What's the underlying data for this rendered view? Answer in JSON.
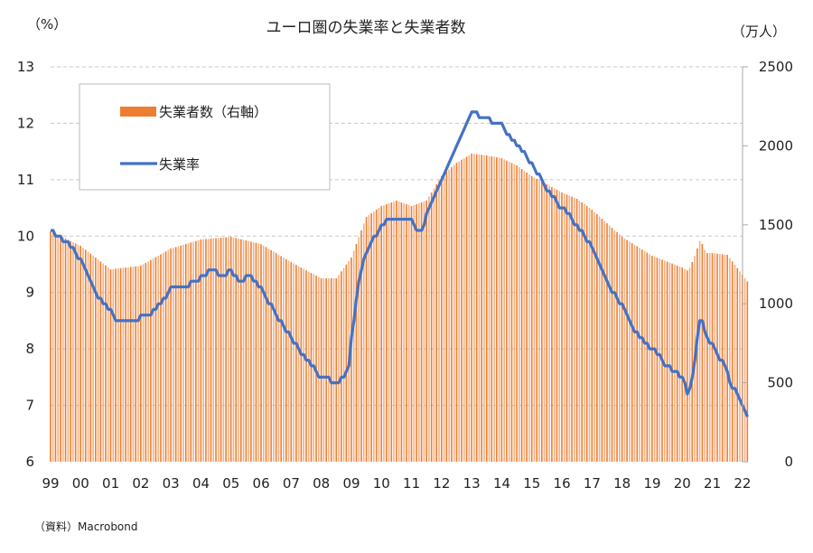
{
  "chart_data": {
    "type": "bar+line",
    "title": "ユーロ圏の失業率と失業者数",
    "left_unit": "（%）",
    "right_unit": "（万人）",
    "source": "（資料）Macrobond",
    "left_axis": {
      "ylim": [
        6,
        13
      ],
      "ticks": [
        "6",
        "7",
        "8",
        "9",
        "10",
        "11",
        "12",
        "13"
      ]
    },
    "right_axis": {
      "ylim": [
        0,
        2500
      ],
      "ticks": [
        "0",
        "500",
        "1000",
        "1500",
        "2000",
        "2500"
      ]
    },
    "x_ticks": [
      "99",
      "00",
      "01",
      "02",
      "03",
      "04",
      "05",
      "06",
      "07",
      "08",
      "09",
      "10",
      "11",
      "12",
      "13",
      "14",
      "15",
      "16",
      "17",
      "18",
      "19",
      "20",
      "21",
      "22"
    ],
    "x_range": [
      1999.0,
      2022.2
    ],
    "grid": true,
    "legend": {
      "position": "top-left",
      "entries": [
        "失業者数（右軸）",
        "失業率"
      ]
    },
    "colors": {
      "bars": "#ED7D31",
      "line": "#4472C4"
    },
    "series": [
      {
        "name": "失業者数（右軸）",
        "type": "bar",
        "axis": "right",
        "frequency": "monthly",
        "points": [
          [
            1999.0,
            1459
          ],
          [
            2000.0,
            1367
          ],
          [
            2001.0,
            1218
          ],
          [
            2002.0,
            1241
          ],
          [
            2003.0,
            1350
          ],
          [
            2004.0,
            1407
          ],
          [
            2005.0,
            1424
          ],
          [
            2006.0,
            1378
          ],
          [
            2007.0,
            1264
          ],
          [
            2008.0,
            1161
          ],
          [
            2008.5,
            1161
          ],
          [
            2009.0,
            1293
          ],
          [
            2009.5,
            1550
          ],
          [
            2010.0,
            1619
          ],
          [
            2010.5,
            1653
          ],
          [
            2011.0,
            1619
          ],
          [
            2011.5,
            1653
          ],
          [
            2012.0,
            1808
          ],
          [
            2012.5,
            1893
          ],
          [
            2013.0,
            1951
          ],
          [
            2013.5,
            1939
          ],
          [
            2014.0,
            1922
          ],
          [
            2014.5,
            1876
          ],
          [
            2015.0,
            1808
          ],
          [
            2016.0,
            1705
          ],
          [
            2016.5,
            1665
          ],
          [
            2017.0,
            1596
          ],
          [
            2018.0,
            1424
          ],
          [
            2019.0,
            1304
          ],
          [
            2020.0,
            1230
          ],
          [
            2020.2,
            1207
          ],
          [
            2020.4,
            1293
          ],
          [
            2020.6,
            1407
          ],
          [
            2020.8,
            1321
          ],
          [
            2021.0,
            1321
          ],
          [
            2021.5,
            1310
          ],
          [
            2022.2,
            1133
          ]
        ]
      },
      {
        "name": "失業率",
        "type": "line",
        "axis": "left",
        "frequency": "monthly",
        "points": [
          [
            1999.0,
            10.08
          ],
          [
            1999.5,
            9.9
          ],
          [
            2000.0,
            9.6
          ],
          [
            2000.5,
            9.0
          ],
          [
            2001.0,
            8.65
          ],
          [
            2001.2,
            8.5
          ],
          [
            2001.8,
            8.5
          ],
          [
            2002.0,
            8.55
          ],
          [
            2002.5,
            8.7
          ],
          [
            2003.0,
            9.05
          ],
          [
            2003.5,
            9.1
          ],
          [
            2004.0,
            9.25
          ],
          [
            2004.3,
            9.4
          ],
          [
            2004.7,
            9.3
          ],
          [
            2005.0,
            9.4
          ],
          [
            2005.3,
            9.2
          ],
          [
            2005.6,
            9.3
          ],
          [
            2006.0,
            9.05
          ],
          [
            2006.5,
            8.6
          ],
          [
            2007.0,
            8.2
          ],
          [
            2007.5,
            7.8
          ],
          [
            2008.0,
            7.5
          ],
          [
            2008.5,
            7.4
          ],
          [
            2008.9,
            7.6
          ],
          [
            2009.0,
            8.2
          ],
          [
            2009.3,
            9.4
          ],
          [
            2009.6,
            9.8
          ],
          [
            2010.0,
            10.2
          ],
          [
            2010.4,
            10.35
          ],
          [
            2011.0,
            10.25
          ],
          [
            2011.3,
            10.05
          ],
          [
            2011.6,
            10.5
          ],
          [
            2012.0,
            11.0
          ],
          [
            2012.5,
            11.6
          ],
          [
            2013.0,
            12.2
          ],
          [
            2013.5,
            12.1
          ],
          [
            2014.0,
            11.95
          ],
          [
            2014.5,
            11.6
          ],
          [
            2015.0,
            11.3
          ],
          [
            2015.5,
            10.8
          ],
          [
            2016.0,
            10.5
          ],
          [
            2016.5,
            10.2
          ],
          [
            2017.0,
            9.8
          ],
          [
            2017.5,
            9.2
          ],
          [
            2018.0,
            8.75
          ],
          [
            2018.5,
            8.25
          ],
          [
            2019.0,
            8.0
          ],
          [
            2019.5,
            7.7
          ],
          [
            2020.0,
            7.5
          ],
          [
            2020.2,
            7.2
          ],
          [
            2020.4,
            7.7
          ],
          [
            2020.6,
            8.6
          ],
          [
            2020.8,
            8.2
          ],
          [
            2021.0,
            8.1
          ],
          [
            2021.3,
            7.8
          ],
          [
            2021.7,
            7.3
          ],
          [
            2022.2,
            6.8
          ]
        ]
      }
    ]
  }
}
